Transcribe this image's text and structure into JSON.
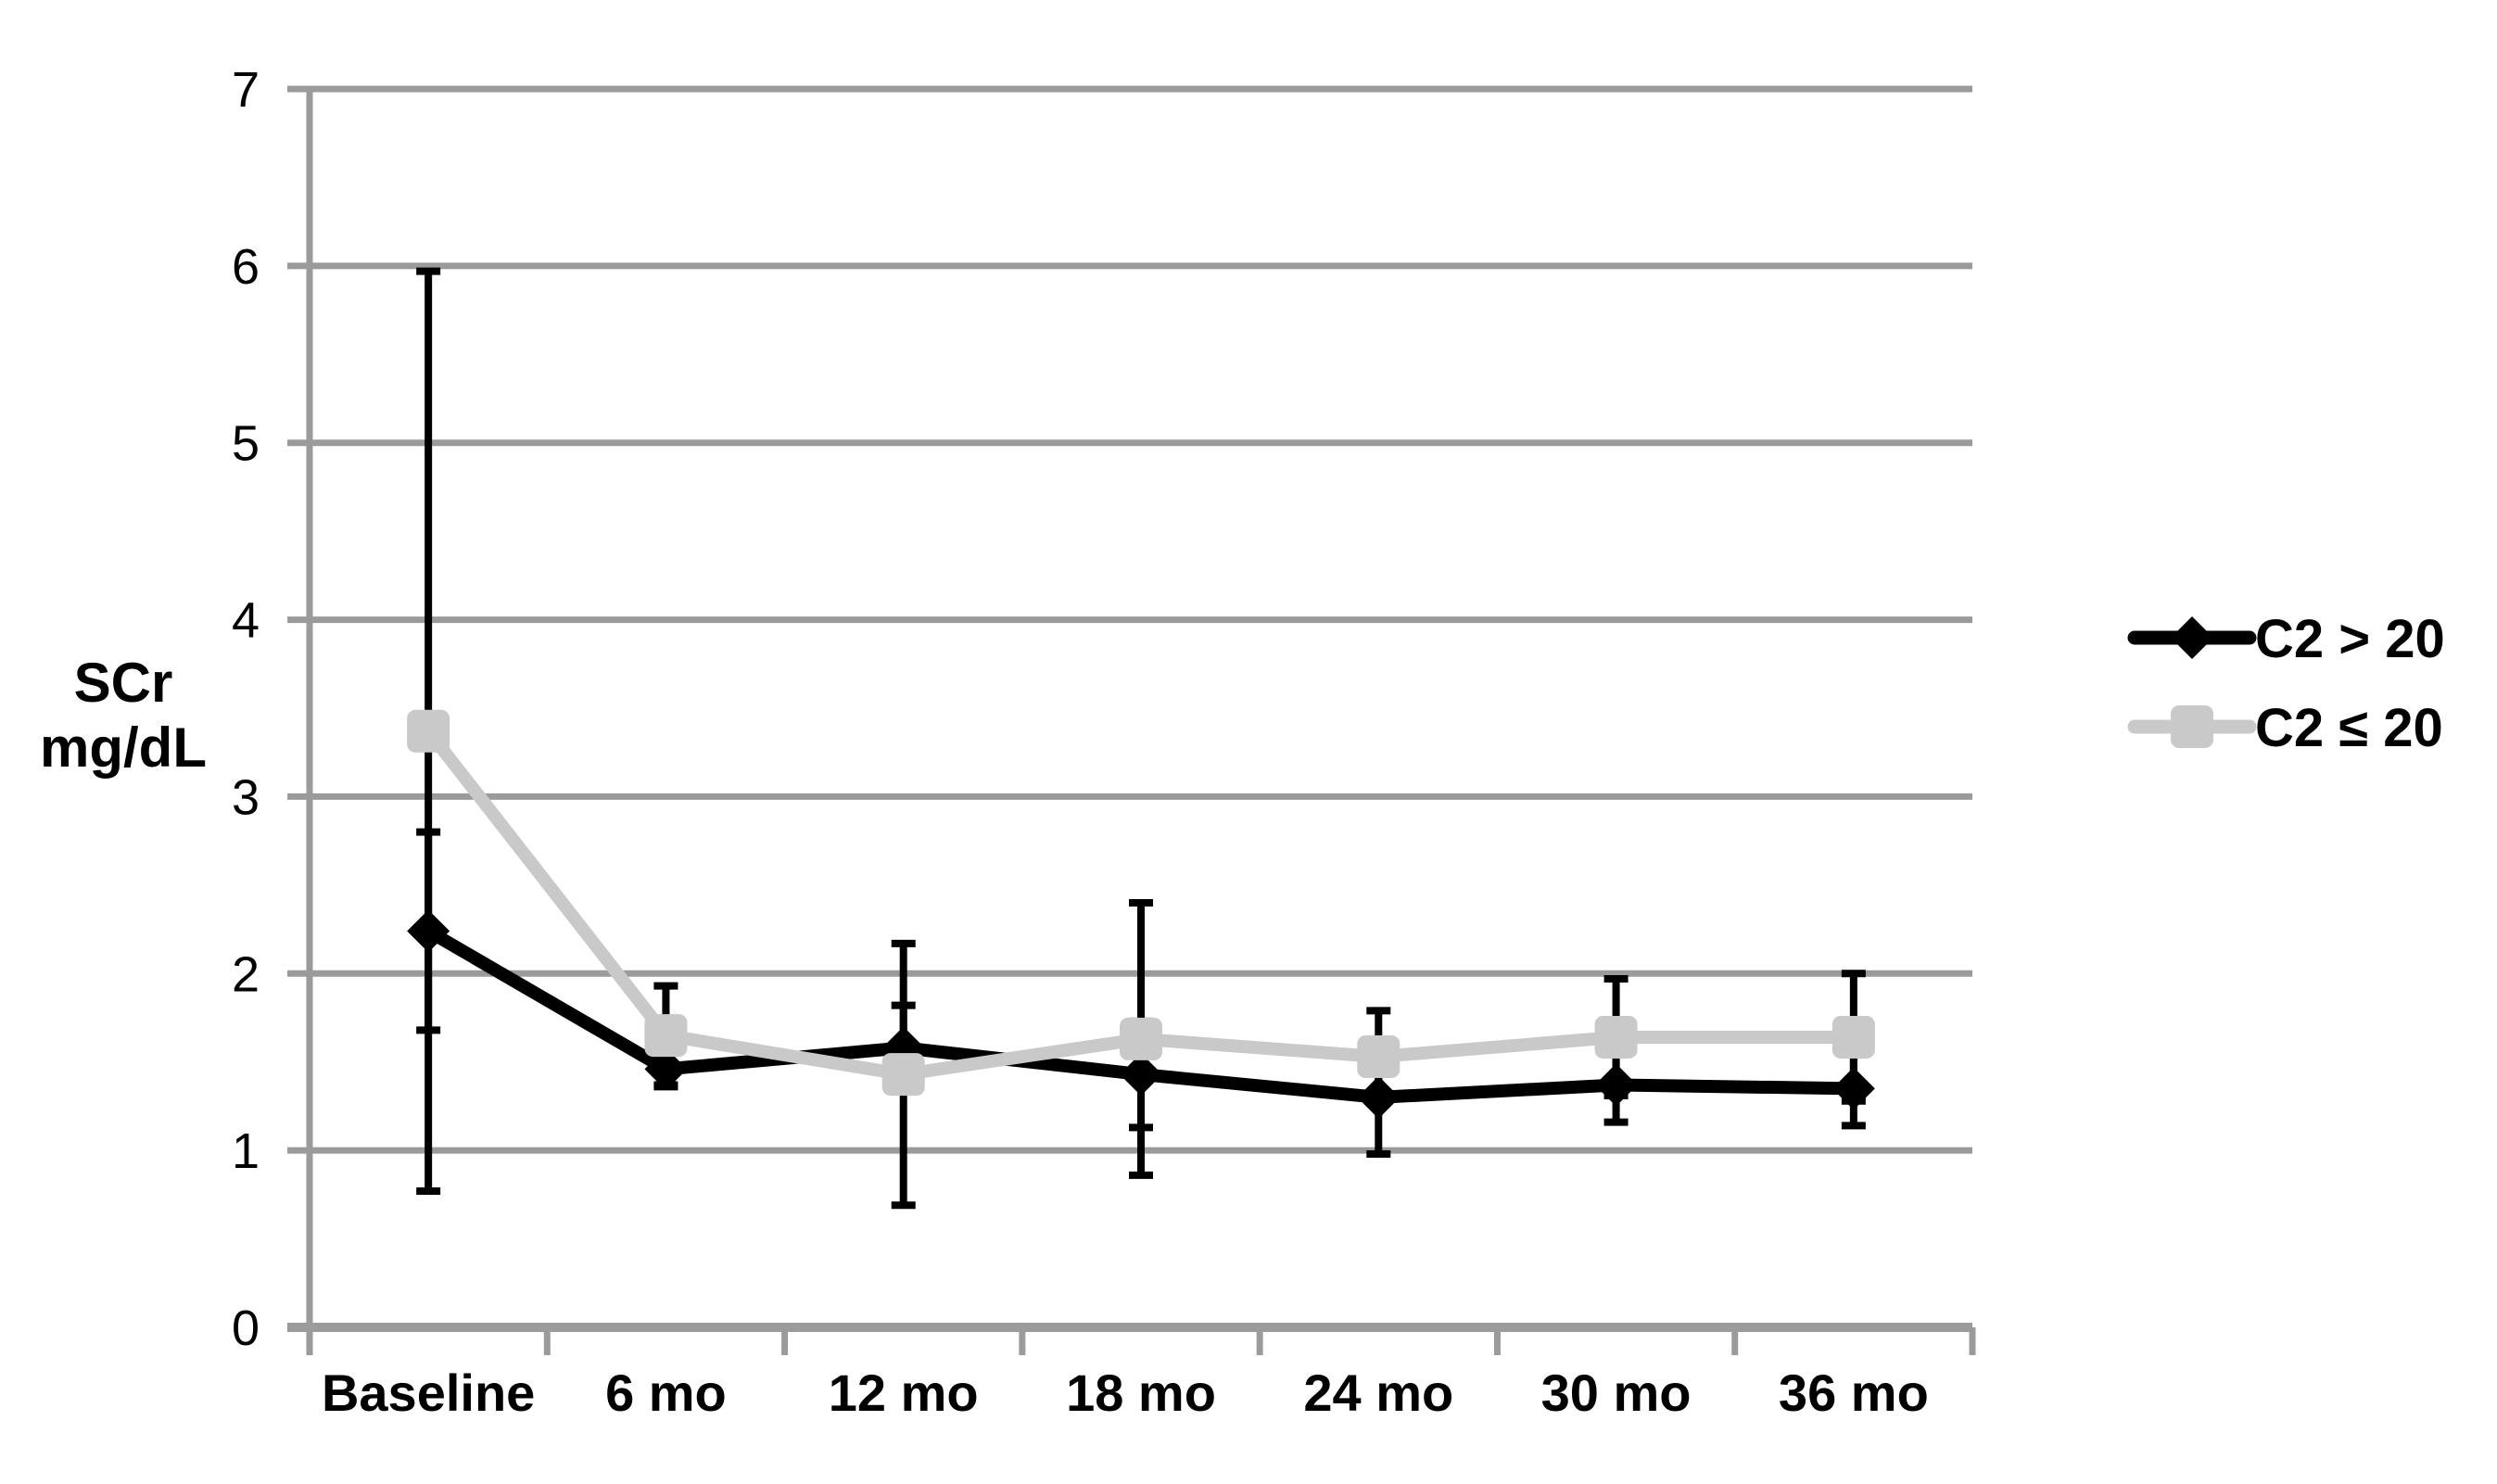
{
  "chart_data": {
    "type": "line",
    "title": "",
    "ylabel_lines": [
      "SCr",
      "mg/dL"
    ],
    "xlabel": "",
    "categories": [
      "Baseline",
      "6 mo",
      "12 mo",
      "18 mo",
      "24 mo",
      "30 mo",
      "36 mo"
    ],
    "ylim": [
      0,
      7
    ],
    "yticks": [
      0,
      1,
      2,
      3,
      4,
      5,
      6,
      7
    ],
    "grid": "horizontal",
    "legend_position": "right",
    "series": [
      {
        "name": "C2 > 20",
        "marker": "diamond",
        "color": "#000000",
        "values": [
          2.24,
          1.46,
          1.58,
          1.43,
          1.3,
          1.37,
          1.35
        ],
        "error": [
          0.56,
          0.1,
          0.24,
          0.3,
          0.32,
          0.21,
          0.21
        ]
      },
      {
        "name": "C2 ≤ 20",
        "marker": "square",
        "color": "#C9C9C9",
        "values": [
          3.37,
          1.65,
          1.43,
          1.63,
          1.53,
          1.64,
          1.64
        ],
        "error": [
          2.6,
          0.28,
          0.74,
          0.77,
          0.26,
          0.33,
          0.36
        ]
      }
    ],
    "error_bar_color": "#000000",
    "colors": {
      "background": "#ffffff",
      "gridline": "#9B9B9B",
      "axis": "#9B9B9B",
      "text": "#000000",
      "series_black": "#000000",
      "series_gray": "#C9C9C9"
    }
  }
}
